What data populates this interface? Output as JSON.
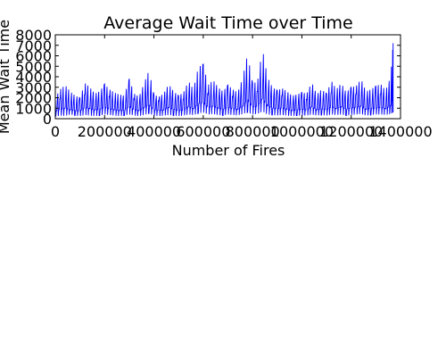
{
  "chart_data": {
    "type": "line",
    "title": "Average Wait Time over Time",
    "xlabel": "Number of Fires",
    "ylabel": "Mean Wait Time",
    "xlim": [
      0,
      1400000
    ],
    "ylim": [
      0,
      8000
    ],
    "x_ticks": [
      0,
      200000,
      400000,
      600000,
      800000,
      1000000,
      1200000,
      1400000
    ],
    "x_tick_labels": [
      "0",
      "200000",
      "400000",
      "600000",
      "800000",
      "1000000",
      "1200000",
      "1400000"
    ],
    "y_ticks": [
      0,
      1000,
      2000,
      3000,
      4000,
      5000,
      6000,
      7000,
      8000
    ],
    "y_tick_labels": [
      "0",
      "1000",
      "2000",
      "3000",
      "4000",
      "5000",
      "6000",
      "7000",
      "8000"
    ],
    "grid": false,
    "series": [
      {
        "color": "#0000ff",
        "x": [
          0,
          20000,
          40000,
          60000,
          80000,
          100000,
          120000,
          140000,
          160000,
          180000,
          200000,
          220000,
          240000,
          260000,
          280000,
          300000,
          320000,
          340000,
          360000,
          380000,
          400000,
          420000,
          440000,
          460000,
          480000,
          500000,
          520000,
          540000,
          560000,
          580000,
          600000,
          620000,
          640000,
          660000,
          680000,
          700000,
          720000,
          740000,
          760000,
          780000,
          800000,
          820000,
          840000,
          860000,
          880000,
          900000,
          920000,
          940000,
          960000,
          980000,
          1000000,
          1020000,
          1040000,
          1060000,
          1080000,
          1100000,
          1120000,
          1140000,
          1160000,
          1180000,
          1200000,
          1220000,
          1240000,
          1260000,
          1280000,
          1300000,
          1320000,
          1340000,
          1360000,
          1370000
        ],
        "y_high": [
          2000,
          2800,
          3200,
          2600,
          2200,
          2000,
          3400,
          3000,
          2400,
          2600,
          3300,
          2800,
          2500,
          2300,
          2200,
          3800,
          2400,
          2100,
          3400,
          4600,
          2300,
          2100,
          2400,
          3300,
          2600,
          2200,
          2500,
          3600,
          2800,
          4900,
          5200,
          3200,
          3700,
          3000,
          2600,
          3200,
          2800,
          2500,
          3900,
          6200,
          3400,
          3500,
          6700,
          4000,
          3000,
          2700,
          2900,
          2600,
          2200,
          2300,
          2500,
          2400,
          3500,
          2300,
          2800,
          2400,
          3600,
          2800,
          3400,
          2500,
          3000,
          3100,
          3800,
          2600,
          2800,
          3100,
          3300,
          2700,
          4000,
          7200
        ],
        "y_low": [
          200,
          300,
          250,
          400,
          300,
          250,
          350,
          300,
          250,
          300,
          400,
          350,
          300,
          250,
          300,
          400,
          300,
          250,
          350,
          500,
          300,
          250,
          300,
          350,
          300,
          250,
          300,
          400,
          350,
          500,
          600,
          400,
          450,
          350,
          300,
          400,
          350,
          300,
          450,
          600,
          400,
          450,
          700,
          400,
          350,
          300,
          350,
          300,
          250,
          300,
          300,
          300,
          400,
          300,
          350,
          300,
          400,
          350,
          400,
          300,
          350,
          400,
          450,
          300,
          350,
          400,
          400,
          350,
          450,
          600
        ],
        "y_mid": [
          1200,
          1500,
          1700,
          1400,
          1300,
          1200,
          1800,
          1600,
          1400,
          1500,
          1800,
          1600,
          1400,
          1300,
          1300,
          2000,
          1400,
          1300,
          1800,
          2200,
          1400,
          1300,
          1400,
          1800,
          1500,
          1300,
          1400,
          1900,
          1600,
          2400,
          2600,
          1800,
          2000,
          1700,
          1500,
          1800,
          1600,
          1500,
          2000,
          3000,
          1900,
          2000,
          3200,
          2100,
          1700,
          1600,
          1700,
          1500,
          1300,
          1400,
          1500,
          1400,
          1900,
          1400,
          1600,
          1400,
          1900,
          1600,
          1900,
          1500,
          1700,
          1800,
          2000,
          1500,
          1600,
          1700,
          1800,
          1600,
          2100,
          3400
        ]
      }
    ]
  }
}
